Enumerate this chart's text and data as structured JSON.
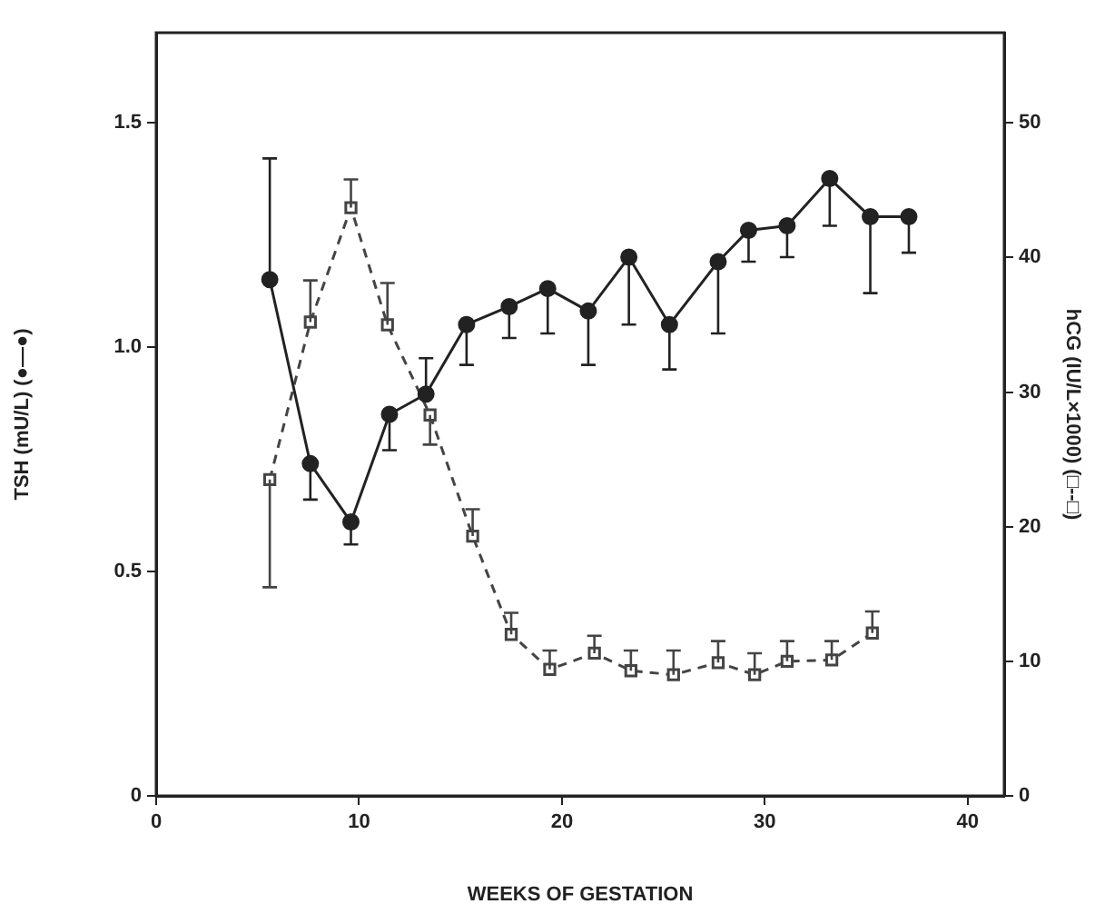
{
  "chart_data": {
    "type": "line",
    "xlabel": "WEEKS OF GESTATION",
    "ylabel": "TSH (mU/L) (●—●)",
    "y2label": "hCG (IU/L×1000) (□--□)",
    "xlim": [
      0,
      41.8
    ],
    "xticks": [
      0,
      10,
      20,
      30,
      40
    ],
    "ylim": [
      0,
      1.7
    ],
    "yticks": [
      0,
      {
        "value": 0.5,
        "label": "0.5"
      },
      {
        "value": 1,
        "label": "1.0"
      },
      {
        "value": 1.5,
        "label": "1.5"
      }
    ],
    "y2lim": [
      0,
      56.7
    ],
    "y2ticks": [
      0,
      10,
      20,
      30,
      40,
      50
    ],
    "grid": false,
    "legend": false,
    "series": [
      {
        "color": "#222222",
        "marker": "circle",
        "line_style": "solid",
        "x": [
          5.6,
          7.6,
          9.6,
          11.5,
          13.3,
          15.3,
          17.4,
          19.3,
          21.3,
          23.3,
          25.3,
          27.7,
          29.2,
          31.1,
          33.2,
          35.2,
          37.1
        ],
        "values": [
          1.15,
          0.74,
          0.61,
          0.85,
          0.895,
          1.05,
          1.09,
          1.13,
          1.08,
          1.2,
          1.05,
          1.19,
          1.26,
          1.27,
          1.375,
          1.29,
          1.29
        ],
        "errors": [
          [
            1.15,
            1.42
          ],
          [
            0.66,
            0.74
          ],
          [
            0.56,
            0.61
          ],
          [
            0.77,
            0.85
          ],
          [
            0.895,
            0.975
          ],
          [
            0.96,
            1.05
          ],
          [
            1.02,
            1.09
          ],
          [
            1.03,
            1.13
          ],
          [
            0.96,
            1.08
          ],
          [
            1.05,
            1.2
          ],
          [
            0.95,
            1.05
          ],
          [
            1.03,
            1.19
          ],
          [
            1.19,
            1.26
          ],
          [
            1.2,
            1.27
          ],
          [
            1.27,
            1.375
          ],
          [
            1.12,
            1.29
          ],
          [
            1.21,
            1.29
          ]
        ]
      },
      {
        "axis": "y2",
        "color": "#444444",
        "marker": "square",
        "line_style": "dashed",
        "x": [
          5.6,
          7.6,
          9.6,
          11.4,
          13.5,
          15.6,
          17.5,
          19.4,
          21.6,
          23.4,
          25.5,
          27.7,
          29.5,
          31.1,
          33.3,
          35.3
        ],
        "values": [
          23.5,
          35.2,
          43.7,
          35,
          28.3,
          19.3,
          12,
          9.4,
          10.6,
          9.3,
          9,
          9.9,
          9,
          10,
          10.1,
          12.1
        ],
        "errors": [
          [
            15.5,
            23.5
          ],
          [
            35.2,
            38.3
          ],
          [
            43.7,
            45.8
          ],
          [
            35,
            38.1
          ],
          [
            26.1,
            28.3
          ],
          [
            19.3,
            21.3
          ],
          [
            12,
            13.6
          ],
          [
            9.4,
            10.8
          ],
          [
            10.6,
            11.9
          ],
          [
            9.3,
            10.8
          ],
          [
            9,
            10.8
          ],
          [
            9.9,
            11.5
          ],
          [
            9,
            10.6
          ],
          [
            10,
            11.5
          ],
          [
            10.1,
            11.5
          ],
          [
            12.1,
            13.7
          ]
        ]
      }
    ]
  }
}
